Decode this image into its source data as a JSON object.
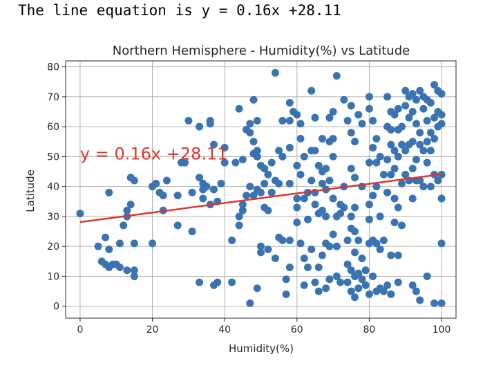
{
  "console": {
    "output": "The line equation is y = 0.16x +28.11"
  },
  "chart_data": {
    "type": "scatter",
    "title": "Northern Hemisphere - Humidity(%) vs Latitude",
    "xlabel": "Humidity(%)",
    "ylabel": "Latitude",
    "xlim": [
      -4,
      104
    ],
    "ylim": [
      -4,
      82
    ],
    "xticks": [
      0,
      20,
      40,
      60,
      80,
      100
    ],
    "yticks": [
      0,
      10,
      20,
      30,
      40,
      50,
      60,
      70,
      80
    ],
    "grid": true,
    "marker_color": "#3a73b1",
    "line_color": "#e0332a",
    "regression": {
      "slope": 0.16,
      "intercept": 28.11
    },
    "annotation": {
      "text": "y = 0.16x +28.11",
      "x": 0,
      "y": 49
    },
    "points": [
      [
        0,
        31
      ],
      [
        5,
        20
      ],
      [
        6,
        15
      ],
      [
        7,
        23
      ],
      [
        7,
        14
      ],
      [
        8,
        38
      ],
      [
        8,
        19
      ],
      [
        8,
        13
      ],
      [
        9,
        14
      ],
      [
        10,
        14
      ],
      [
        11,
        21
      ],
      [
        11,
        13
      ],
      [
        12,
        27
      ],
      [
        13,
        32
      ],
      [
        13,
        30
      ],
      [
        13,
        12
      ],
      [
        14,
        43
      ],
      [
        14,
        34
      ],
      [
        15,
        42
      ],
      [
        15,
        21
      ],
      [
        15,
        12
      ],
      [
        15,
        10
      ],
      [
        20,
        40
      ],
      [
        20,
        21
      ],
      [
        21,
        41
      ],
      [
        22,
        38
      ],
      [
        23,
        37
      ],
      [
        23,
        32
      ],
      [
        24,
        42
      ],
      [
        27,
        37
      ],
      [
        27,
        27
      ],
      [
        28,
        48
      ],
      [
        29,
        48
      ],
      [
        30,
        62
      ],
      [
        31,
        38
      ],
      [
        31,
        25
      ],
      [
        33,
        60
      ],
      [
        33,
        43
      ],
      [
        33,
        8
      ],
      [
        34,
        41
      ],
      [
        34,
        36
      ],
      [
        34,
        39
      ],
      [
        35,
        40
      ],
      [
        36,
        62
      ],
      [
        36,
        61
      ],
      [
        36,
        34
      ],
      [
        37,
        39
      ],
      [
        37,
        54
      ],
      [
        37,
        7
      ],
      [
        38,
        8
      ],
      [
        38,
        35
      ],
      [
        39,
        41
      ],
      [
        40,
        53
      ],
      [
        40,
        48
      ],
      [
        42,
        22
      ],
      [
        42,
        8
      ],
      [
        43,
        48
      ],
      [
        44,
        66
      ],
      [
        44,
        30
      ],
      [
        44,
        27
      ],
      [
        45,
        49
      ],
      [
        45,
        34
      ],
      [
        45,
        32
      ],
      [
        46,
        37
      ],
      [
        46,
        59
      ],
      [
        47,
        61
      ],
      [
        47,
        58
      ],
      [
        47,
        40
      ],
      [
        47,
        1
      ],
      [
        48,
        69
      ],
      [
        48,
        55
      ],
      [
        48,
        51
      ],
      [
        48,
        37
      ],
      [
        49,
        52
      ],
      [
        49,
        50
      ],
      [
        49,
        62
      ],
      [
        49,
        39
      ],
      [
        49,
        6
      ],
      [
        50,
        47
      ],
      [
        50,
        20
      ],
      [
        50,
        18
      ],
      [
        50,
        38
      ],
      [
        51,
        41
      ],
      [
        51,
        46
      ],
      [
        51,
        33
      ],
      [
        52,
        44
      ],
      [
        52,
        32
      ],
      [
        52,
        19
      ],
      [
        53,
        38
      ],
      [
        53,
        48
      ],
      [
        54,
        78
      ],
      [
        54,
        42
      ],
      [
        54,
        16
      ],
      [
        55,
        52
      ],
      [
        55,
        41
      ],
      [
        55,
        23
      ],
      [
        56,
        62
      ],
      [
        56,
        50
      ],
      [
        56,
        22
      ],
      [
        57,
        9
      ],
      [
        57,
        4
      ],
      [
        58,
        68
      ],
      [
        58,
        62
      ],
      [
        58,
        53
      ],
      [
        58,
        41
      ],
      [
        58,
        22
      ],
      [
        58,
        13
      ],
      [
        59,
        65
      ],
      [
        60,
        64
      ],
      [
        60,
        47
      ],
      [
        60,
        36
      ],
      [
        60,
        33
      ],
      [
        60,
        28
      ],
      [
        61,
        61
      ],
      [
        61,
        56
      ],
      [
        61,
        44
      ],
      [
        61,
        21
      ],
      [
        62,
        50
      ],
      [
        62,
        36
      ],
      [
        62,
        16
      ],
      [
        62,
        7
      ],
      [
        63,
        38
      ],
      [
        63,
        29
      ],
      [
        63,
        13
      ],
      [
        64,
        72
      ],
      [
        64,
        52
      ],
      [
        64,
        42
      ],
      [
        64,
        19
      ],
      [
        65,
        63
      ],
      [
        65,
        52
      ],
      [
        65,
        38
      ],
      [
        65,
        34
      ],
      [
        65,
        8
      ],
      [
        66,
        47
      ],
      [
        66,
        31
      ],
      [
        66,
        13
      ],
      [
        66,
        5
      ],
      [
        67,
        56
      ],
      [
        67,
        45
      ],
      [
        67,
        41
      ],
      [
        67,
        32
      ],
      [
        67,
        17
      ],
      [
        68,
        46
      ],
      [
        68,
        39
      ],
      [
        68,
        30
      ],
      [
        68,
        21
      ],
      [
        68,
        6
      ],
      [
        69,
        63
      ],
      [
        69,
        55
      ],
      [
        69,
        42
      ],
      [
        69,
        20
      ],
      [
        69,
        9
      ],
      [
        70,
        65
      ],
      [
        70,
        56
      ],
      [
        70,
        50
      ],
      [
        70,
        36
      ],
      [
        70,
        24
      ],
      [
        71,
        77
      ],
      [
        71,
        30
      ],
      [
        71,
        20
      ],
      [
        71,
        10
      ],
      [
        72,
        34
      ],
      [
        72,
        31
      ],
      [
        72,
        8
      ],
      [
        73,
        69
      ],
      [
        73,
        40
      ],
      [
        73,
        33
      ],
      [
        74,
        62
      ],
      [
        74,
        22
      ],
      [
        74,
        14
      ],
      [
        74,
        8
      ],
      [
        75,
        67
      ],
      [
        75,
        58
      ],
      [
        75,
        46
      ],
      [
        75,
        30
      ],
      [
        75,
        26
      ],
      [
        75,
        12
      ],
      [
        75,
        5
      ],
      [
        76,
        55
      ],
      [
        76,
        43
      ],
      [
        76,
        33
      ],
      [
        76,
        25
      ],
      [
        76,
        18
      ],
      [
        76,
        10
      ],
      [
        76,
        3
      ],
      [
        77,
        64
      ],
      [
        77,
        22
      ],
      [
        77,
        11
      ],
      [
        77,
        6
      ],
      [
        78,
        61
      ],
      [
        78,
        40
      ],
      [
        78,
        16
      ],
      [
        78,
        9
      ],
      [
        79,
        12
      ],
      [
        79,
        7
      ],
      [
        80,
        70
      ],
      [
        80,
        66
      ],
      [
        80,
        48
      ],
      [
        80,
        34
      ],
      [
        80,
        29
      ],
      [
        80,
        21
      ],
      [
        80,
        4
      ],
      [
        81,
        62
      ],
      [
        81,
        53
      ],
      [
        81,
        37
      ],
      [
        81,
        22
      ],
      [
        81,
        10
      ],
      [
        82,
        56
      ],
      [
        82,
        48
      ],
      [
        82,
        40
      ],
      [
        82,
        21
      ],
      [
        82,
        5
      ],
      [
        83,
        50
      ],
      [
        83,
        30
      ],
      [
        83,
        19
      ],
      [
        83,
        6
      ],
      [
        84,
        44
      ],
      [
        84,
        22
      ],
      [
        84,
        5
      ],
      [
        85,
        70
      ],
      [
        85,
        60
      ],
      [
        85,
        49
      ],
      [
        85,
        38
      ],
      [
        85,
        7
      ],
      [
        86,
        65
      ],
      [
        86,
        59
      ],
      [
        86,
        54
      ],
      [
        86,
        44
      ],
      [
        86,
        17
      ],
      [
        86,
        4
      ],
      [
        87,
        64
      ],
      [
        87,
        52
      ],
      [
        87,
        46
      ],
      [
        87,
        36
      ],
      [
        87,
        28
      ],
      [
        88,
        66
      ],
      [
        88,
        59
      ],
      [
        88,
        50
      ],
      [
        88,
        33
      ],
      [
        88,
        17
      ],
      [
        88,
        8
      ],
      [
        89,
        60
      ],
      [
        89,
        54
      ],
      [
        89,
        41
      ],
      [
        89,
        27
      ],
      [
        90,
        72
      ],
      [
        90,
        67
      ],
      [
        90,
        52
      ],
      [
        90,
        44
      ],
      [
        91,
        70
      ],
      [
        91,
        63
      ],
      [
        91,
        54
      ],
      [
        91,
        42
      ],
      [
        92,
        71
      ],
      [
        92,
        65
      ],
      [
        92,
        55
      ],
      [
        92,
        46
      ],
      [
        92,
        36
      ],
      [
        92,
        7
      ],
      [
        93,
        69
      ],
      [
        93,
        61
      ],
      [
        93,
        49
      ],
      [
        93,
        42
      ],
      [
        93,
        5
      ],
      [
        94,
        72
      ],
      [
        94,
        58
      ],
      [
        94,
        54
      ],
      [
        94,
        42
      ],
      [
        94,
        2
      ],
      [
        95,
        70
      ],
      [
        95,
        66
      ],
      [
        95,
        52
      ],
      [
        95,
        40
      ],
      [
        96,
        69
      ],
      [
        96,
        62
      ],
      [
        96,
        55
      ],
      [
        96,
        48
      ],
      [
        96,
        10
      ],
      [
        97,
        68
      ],
      [
        97,
        58
      ],
      [
        97,
        52
      ],
      [
        97,
        40
      ],
      [
        98,
        74
      ],
      [
        98,
        63
      ],
      [
        98,
        56
      ],
      [
        98,
        44
      ],
      [
        98,
        1
      ],
      [
        99,
        72
      ],
      [
        99,
        65
      ],
      [
        99,
        60
      ],
      [
        99,
        42
      ],
      [
        100,
        71
      ],
      [
        100,
        64
      ],
      [
        100,
        61
      ],
      [
        100,
        44
      ],
      [
        100,
        36
      ],
      [
        100,
        21
      ],
      [
        100,
        1
      ]
    ]
  }
}
